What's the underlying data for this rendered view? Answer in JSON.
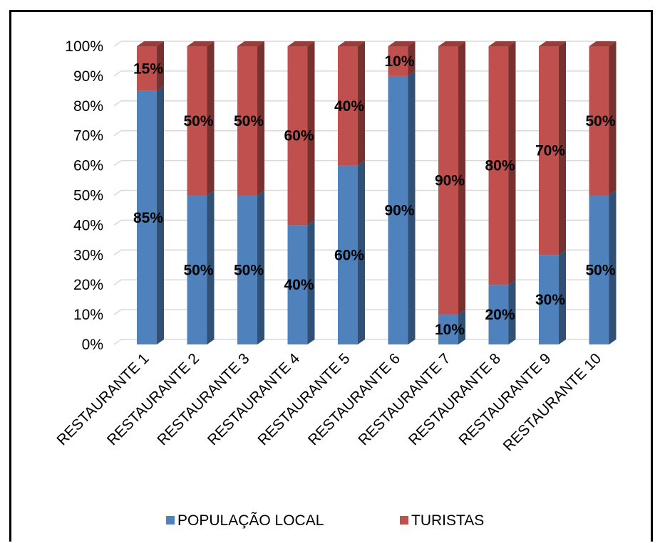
{
  "chart_data": {
    "type": "bar",
    "stacked": true,
    "percent_stacked": true,
    "style": "3d-column",
    "categories": [
      "RESTAURANTE 1",
      "RESTAURANTE 2",
      "RESTAURANTE 3",
      "RESTAURANTE 4",
      "RESTAURANTE 5",
      "RESTAURANTE 6",
      "RESTAURANTE 7",
      "RESTAURANTE 8",
      "RESTAURANTE 9",
      "RESTAURANTE 10"
    ],
    "series": [
      {
        "name": "POPULAÇÃO LOCAL",
        "color": "#4F81BD",
        "values": [
          85,
          50,
          50,
          40,
          60,
          90,
          10,
          20,
          30,
          50
        ],
        "labels": [
          "85%",
          "50%",
          "50%",
          "40%",
          "60%",
          "90%",
          "10%",
          "20%",
          "30%",
          "50%"
        ]
      },
      {
        "name": "TURISTAS",
        "color": "#C0504D",
        "values": [
          15,
          50,
          50,
          60,
          40,
          10,
          90,
          80,
          70,
          50
        ],
        "labels": [
          "15%",
          "50%",
          "50%",
          "60%",
          "40%",
          "10%",
          "90%",
          "80%",
          "70%",
          "50%"
        ]
      }
    ],
    "y_ticks": [
      "0%",
      "10%",
      "20%",
      "30%",
      "40%",
      "50%",
      "60%",
      "70%",
      "80%",
      "90%",
      "100%"
    ],
    "ylim": [
      0,
      100
    ],
    "grid": true,
    "legend_position": "bottom"
  }
}
